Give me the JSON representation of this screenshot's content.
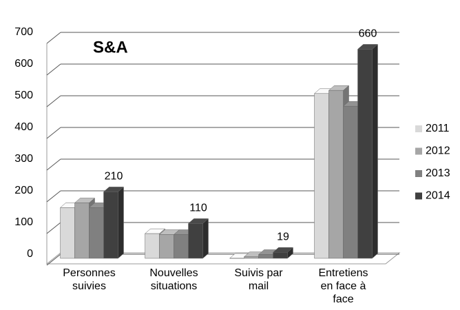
{
  "chart_data": {
    "type": "bar3d",
    "title": "S&A",
    "categories": [
      "Personnes suivies",
      "Nouvelles situations",
      "Suivis par mail",
      "Entretiens en face à face"
    ],
    "series": [
      {
        "name": "2011",
        "color": "#d9d9d9",
        "values": [
          160,
          78,
          0,
          520
        ]
      },
      {
        "name": "2012",
        "color": "#a6a6a6",
        "values": [
          175,
          75,
          5,
          530
        ]
      },
      {
        "name": "2013",
        "color": "#808080",
        "values": [
          160,
          75,
          12,
          480
        ]
      },
      {
        "name": "2014",
        "color": "#404040",
        "values": [
          210,
          110,
          19,
          660
        ],
        "data_labels": true
      }
    ],
    "ylim": [
      0,
      700
    ],
    "yticks": [
      0,
      100,
      200,
      300,
      400,
      500,
      600,
      700
    ],
    "grid": true,
    "legend": "right"
  }
}
